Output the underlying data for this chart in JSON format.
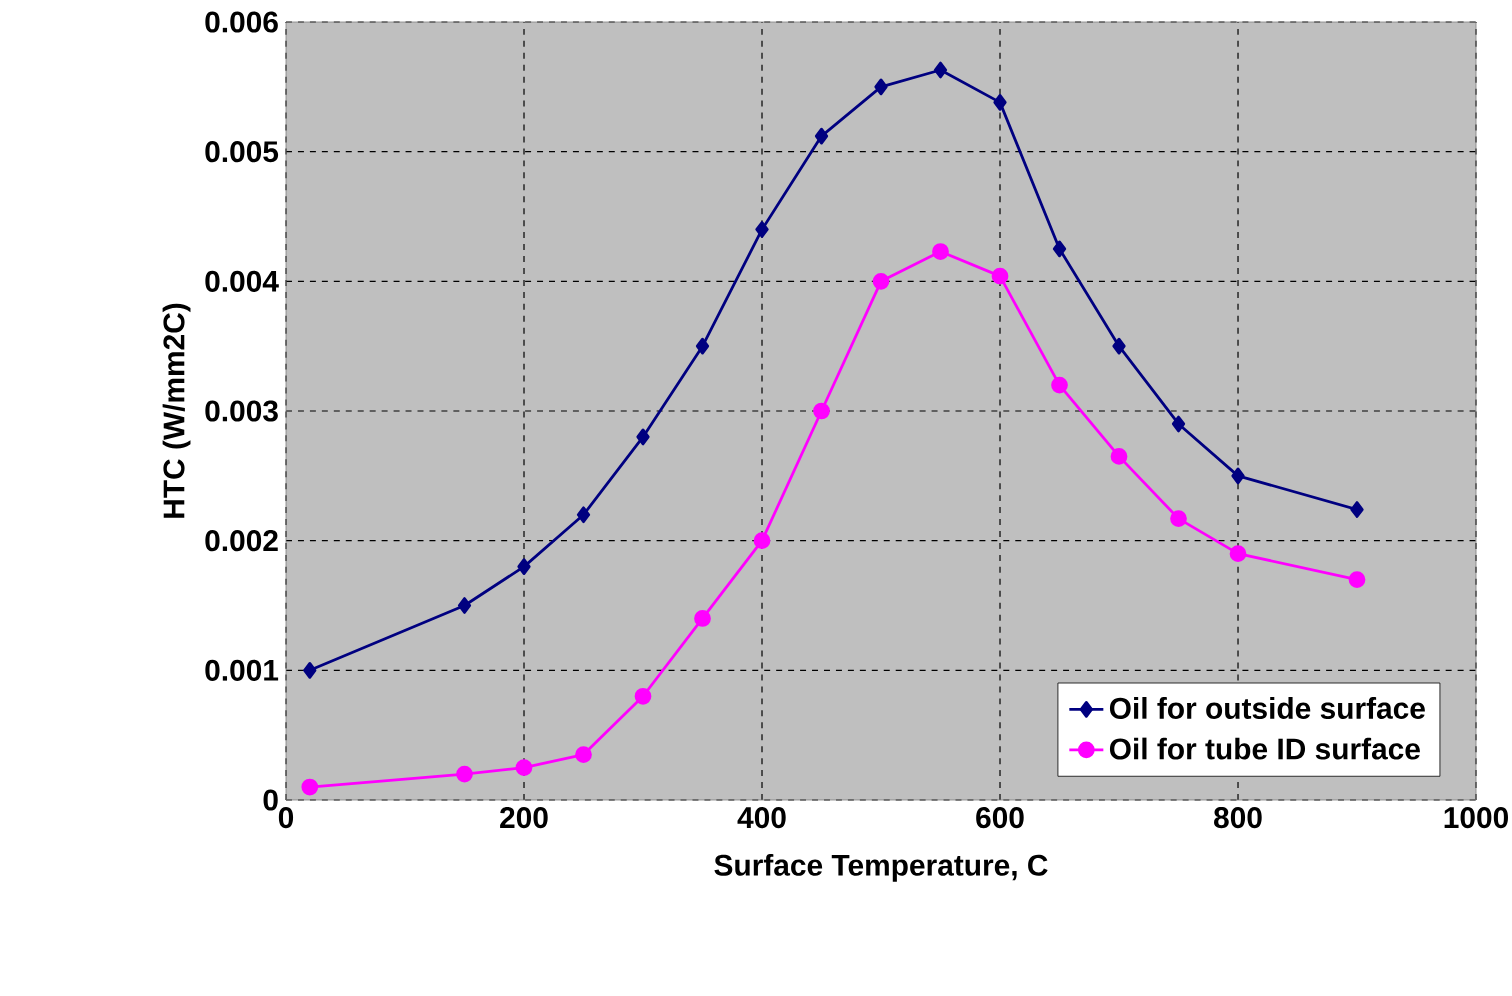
{
  "chart_data": {
    "type": "line",
    "xlabel": "Surface Temperature, C",
    "ylabel": "HTC (W/mm2C)",
    "xlim": [
      0,
      1000
    ],
    "xticks": [
      0,
      200,
      400,
      600,
      800,
      1000
    ],
    "ylim": [
      0,
      0.006
    ],
    "yticks": [
      0,
      0.001,
      0.002,
      0.003,
      0.004,
      0.005,
      0.006
    ],
    "grid": true,
    "legend": "bottom right",
    "series": [
      {
        "name": "Oil for outside surface",
        "color": "#000080",
        "marker": "diamond",
        "x": [
          20,
          150,
          200,
          250,
          300,
          350,
          400,
          450,
          500,
          550,
          600,
          650,
          700,
          750,
          800,
          900
        ],
        "values": [
          0.001,
          0.0015,
          0.0018,
          0.0022,
          0.0028,
          0.0035,
          0.0044,
          0.00512,
          0.0055,
          0.00563,
          0.00538,
          0.00425,
          0.0035,
          0.0029,
          0.0025,
          0.00224
        ]
      },
      {
        "name": "Oil for tube ID surface",
        "color": "#ff00ff",
        "marker": "circle",
        "x": [
          20,
          150,
          200,
          250,
          300,
          350,
          400,
          450,
          500,
          550,
          600,
          650,
          700,
          750,
          800,
          900
        ],
        "values": [
          0.0001,
          0.0002,
          0.00025,
          0.00035,
          0.0008,
          0.0014,
          0.002,
          0.003,
          0.004,
          0.00423,
          0.00404,
          0.0032,
          0.00265,
          0.00217,
          0.0019,
          0.0017
        ]
      }
    ]
  }
}
